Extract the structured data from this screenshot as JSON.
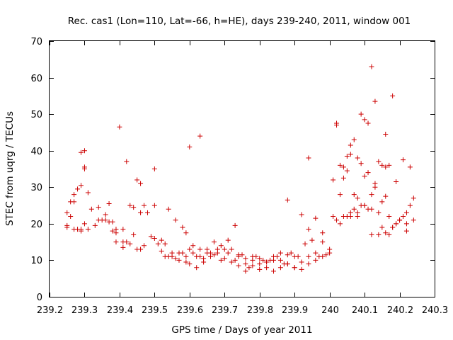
{
  "chart_data": {
    "type": "scatter",
    "title": "Rec. cas1 (Lon=110, Lat=-66, h=HE), days 239-240, 2011, window 001",
    "xlabel": "GPS time / Days of year 2011",
    "ylabel": "STEC from uqrg / TECUs",
    "xlim": [
      239.2,
      240.3
    ],
    "ylim": [
      0,
      70
    ],
    "x_ticks": [
      "239.2",
      "239.3",
      "239.4",
      "239.5",
      "239.6",
      "239.7",
      "239.8",
      "239.9",
      "240",
      "240.1",
      "240.2",
      "240.3"
    ],
    "y_ticks": [
      "0",
      "10",
      "20",
      "30",
      "40",
      "50",
      "60",
      "70"
    ],
    "grid": false,
    "legend": "none",
    "marker": "+",
    "color": "#cc0000",
    "x": [
      239.25,
      239.26,
      239.27,
      239.28,
      239.29,
      239.3,
      239.31,
      239.32,
      239.34,
      239.36,
      239.37,
      239.38,
      239.39,
      239.41,
      239.43,
      239.44,
      239.46,
      239.48,
      239.5,
      239.25,
      239.26,
      239.27,
      239.28,
      239.29,
      239.3,
      239.31,
      239.33,
      239.35,
      239.37,
      239.39,
      239.41,
      239.43,
      239.45,
      239.47,
      239.49,
      239.25,
      239.27,
      239.29,
      239.3,
      239.29,
      239.3,
      239.34,
      239.36,
      239.38,
      239.39,
      239.4,
      239.42,
      239.44,
      239.46,
      239.5,
      239.52,
      239.54,
      239.56,
      239.58,
      239.59,
      239.41,
      239.42,
      239.45,
      239.46,
      239.47,
      239.5,
      239.53,
      239.55,
      239.57,
      239.59,
      239.61,
      239.63,
      239.65,
      239.67,
      239.69,
      239.71,
      239.74,
      239.76,
      239.78,
      239.8,
      239.82,
      239.84,
      239.86,
      239.88,
      239.9,
      239.92,
      239.94,
      239.96,
      239.98,
      240.0,
      239.52,
      239.54,
      239.56,
      239.58,
      239.6,
      239.62,
      239.64,
      239.66,
      239.68,
      239.7,
      239.72,
      239.74,
      239.76,
      239.78,
      239.8,
      239.82,
      239.84,
      239.86,
      239.88,
      239.9,
      239.92,
      239.94,
      239.96,
      239.98,
      240.0,
      239.51,
      239.53,
      239.55,
      239.57,
      239.59,
      239.61,
      239.63,
      239.65,
      239.67,
      239.69,
      239.71,
      239.73,
      239.75,
      239.77,
      239.79,
      239.81,
      239.83,
      239.85,
      239.87,
      239.89,
      239.91,
      239.93,
      239.95,
      239.97,
      239.99,
      239.6,
      239.62,
      239.64,
      239.66,
      239.68,
      239.7,
      239.72,
      239.74,
      239.76,
      239.78,
      239.8,
      239.82,
      239.84,
      239.86,
      239.88,
      239.9,
      239.92,
      239.94,
      239.96,
      239.98,
      239.73,
      239.88,
      239.94,
      239.6,
      239.63,
      240.01,
      240.02,
      240.03,
      240.04,
      240.05,
      240.06,
      240.07,
      240.08,
      240.09,
      240.1,
      240.11,
      240.12,
      240.13,
      240.14,
      240.15,
      240.16,
      240.17,
      240.18,
      240.19,
      240.2,
      240.21,
      240.22,
      240.23,
      240.24,
      240.01,
      240.02,
      240.03,
      240.04,
      240.05,
      240.06,
      240.07,
      240.08,
      240.09,
      240.1,
      240.11,
      240.12,
      240.13,
      240.14,
      240.15,
      240.16,
      240.17,
      240.18,
      240.19,
      240.2,
      240.22,
      240.24,
      240.02,
      240.04,
      240.06,
      240.08,
      240.1,
      240.12,
      240.14,
      240.16,
      240.18,
      240.2,
      240.22,
      240.06,
      240.08,
      240.1,
      240.12,
      240.15,
      240.17,
      240.03,
      240.05,
      240.07,
      240.09,
      240.11,
      240.13,
      240.16,
      240.19,
      240.21,
      240.23
    ],
    "y": [
      23,
      22,
      28,
      29.5,
      39.5,
      40,
      28.5,
      24,
      24.5,
      22.5,
      25.5,
      20.5,
      17.5,
      15,
      25,
      17,
      23,
      23,
      25,
      19.5,
      26,
      26,
      18.5,
      18.5,
      20,
      18.5,
      19.5,
      21,
      20.5,
      18.5,
      18.5,
      14.5,
      32,
      25,
      16.5,
      19,
      18.5,
      30.5,
      35.5,
      18,
      35,
      21,
      21,
      18,
      15,
      46.5,
      37,
      24.5,
      31,
      35,
      15.5,
      24,
      21,
      19,
      17.5,
      13.5,
      15,
      13,
      13,
      14,
      16,
      14.5,
      12,
      10,
      9.5,
      12,
      11,
      13,
      11.5,
      10,
      12,
      11,
      7,
      10,
      9,
      8,
      7,
      8,
      9,
      8,
      7.5,
      9,
      10,
      11,
      12,
      12.5,
      11,
      10.5,
      12,
      9,
      8,
      10.5,
      12,
      13,
      10.5,
      13,
      11.5,
      9,
      8.5,
      7.5,
      9.5,
      11,
      10,
      9,
      8,
      9.5,
      11,
      12,
      15,
      13,
      14.5,
      11,
      11,
      12,
      11,
      14,
      13,
      12,
      15,
      14,
      15.5,
      10,
      11.5,
      8,
      11,
      10,
      10,
      11,
      9,
      12,
      11,
      14.5,
      15.5,
      11,
      11.5,
      13,
      11,
      9.5,
      11,
      12,
      13,
      9.5,
      8.5,
      10.5,
      11,
      10.5,
      9.5,
      10,
      12,
      11.5,
      11,
      22.5,
      18.5,
      21.5,
      17.5,
      19.5,
      26.5,
      38,
      41,
      44,
      32,
      47.5,
      36,
      35.5,
      34.5,
      39,
      43,
      27,
      50,
      48.5,
      47.5,
      63,
      53.5,
      37,
      36,
      44.5,
      36,
      55,
      20,
      21,
      22,
      23,
      25,
      27,
      22,
      21,
      20,
      22,
      22,
      23,
      24,
      22,
      25,
      25,
      24,
      28,
      30,
      23,
      26,
      27.5,
      17,
      19,
      20,
      21,
      18,
      21,
      47,
      32.5,
      41.5,
      38,
      33,
      17,
      17,
      17.5,
      19,
      21,
      20,
      22,
      23,
      25,
      24,
      19,
      22,
      28,
      38.5,
      28,
      36.5,
      34,
      31,
      35.5,
      31.5,
      37.5,
      35.5
    ]
  }
}
